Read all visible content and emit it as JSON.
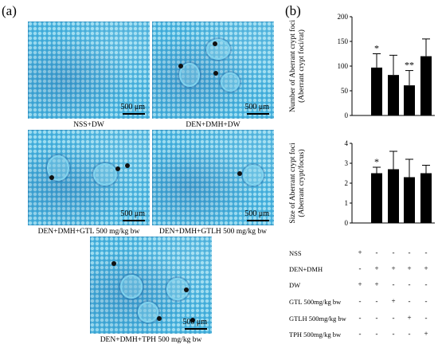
{
  "panel_a_label": "(a)",
  "panel_b_label": "(b)",
  "micrographs": [
    {
      "caption": "NSS+DW",
      "scale": "500 μm"
    },
    {
      "caption": "DEN+DMH+DW",
      "scale": "500 μm"
    },
    {
      "caption": "DEN+DMH+GTL 500 mg/kg bw",
      "scale": "500 μm"
    },
    {
      "caption": "DEN+DMH+GTLH 500 mg/kg bw",
      "scale": "500 μm"
    },
    {
      "caption": "DEN+DMH+TPH 500 mg/kg bw",
      "scale": "500 μm"
    }
  ],
  "chart_data": [
    {
      "type": "bar",
      "ylabel_line1": "Number of Aberrant crypt foci",
      "ylabel_line2": "(Aberrant crypt foci/rat)",
      "ylim": [
        0,
        200
      ],
      "yticks": [
        "0",
        "50",
        "100",
        "150",
        "200"
      ],
      "tick_values": [
        0,
        50,
        100,
        150,
        200
      ],
      "values": [
        0,
        97,
        82,
        61,
        120
      ],
      "errors": [
        0,
        28,
        40,
        30,
        35
      ],
      "annotations": [
        "",
        "*",
        "",
        "**",
        ""
      ],
      "bar_color": "#000000"
    },
    {
      "type": "bar",
      "ylabel_line1": "Size of Aberrant crypt foci",
      "ylabel_line2": "(Aberrant crypt/focus)",
      "ylim": [
        0,
        4
      ],
      "yticks": [
        "0",
        "1",
        "2",
        "3",
        "4"
      ],
      "tick_values": [
        0,
        1,
        2,
        3,
        4
      ],
      "values": [
        0,
        2.5,
        2.7,
        2.3,
        2.5
      ],
      "errors": [
        0,
        0.3,
        0.9,
        0.9,
        0.4
      ],
      "annotations": [
        "",
        "*",
        "",
        "",
        ""
      ],
      "bar_color": "#000000"
    }
  ],
  "treatment_table": {
    "rows": [
      {
        "label": "NSS",
        "cells": [
          "+",
          "-",
          "-",
          "-",
          "-"
        ]
      },
      {
        "label": "DEN+DMH",
        "cells": [
          "-",
          "+",
          "+",
          "+",
          "+"
        ]
      },
      {
        "label": "DW",
        "cells": [
          "+",
          "+",
          "-",
          "-",
          "-"
        ]
      },
      {
        "label": "GTL 500mg/kg bw",
        "cells": [
          "-",
          "-",
          "+",
          "-",
          "-"
        ]
      },
      {
        "label": "GTLH 500mg/kg bw",
        "cells": [
          "-",
          "-",
          "-",
          "+",
          "-"
        ]
      },
      {
        "label": "TPH 500mg/kg bw",
        "cells": [
          "-",
          "-",
          "-",
          "-",
          "+"
        ]
      }
    ]
  }
}
